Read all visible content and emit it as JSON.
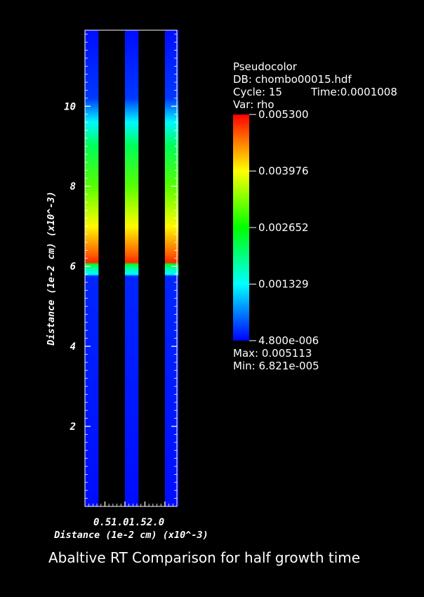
{
  "chart_data": {
    "type": "heatmap",
    "title": "Abaltive RT Comparison for half growth time",
    "xlabel": "Distance (1e-2 cm) (x10^-3)",
    "ylabel": "Distance (1e-2 cm) (x10^-3)",
    "xlim": [
      0,
      2.3
    ],
    "ylim": [
      0,
      11.9
    ],
    "x_ticks": [
      "0.5",
      "1.0",
      "1.5",
      "2.0"
    ],
    "x_ticks_rendered": "0.51.01.52.0",
    "y_ticks": [
      2,
      4,
      6,
      8,
      10
    ],
    "panels": [
      {
        "x_start": 0.0,
        "x_end": 0.34
      },
      {
        "x_start": 1.0,
        "x_end": 1.34
      },
      {
        "x_start": 2.0,
        "x_end": 2.34
      }
    ],
    "rho_profile": [
      {
        "y": 0.0,
        "value": 7e-05
      },
      {
        "y": 5.75,
        "value": 0.0002
      },
      {
        "y": 5.8,
        "value": 0.0013
      },
      {
        "y": 5.95,
        "value": 0.0018
      },
      {
        "y": 6.05,
        "value": 0.0025
      },
      {
        "y": 6.1,
        "value": 0.0051
      },
      {
        "y": 6.3,
        "value": 0.0048
      },
      {
        "y": 7.0,
        "value": 0.004
      },
      {
        "y": 8.0,
        "value": 0.0031
      },
      {
        "y": 9.0,
        "value": 0.0022
      },
      {
        "y": 9.6,
        "value": 0.0013
      },
      {
        "y": 10.2,
        "value": 0.0003
      },
      {
        "y": 11.9,
        "value": 7e-05
      }
    ],
    "legend": {
      "type_label": "Pseudocolor",
      "db": "DB: chombo00015.hdf",
      "cycle": "Cycle: 15",
      "time": "Time:0.0001008",
      "var": "Var: rho",
      "colorbar_ticks": [
        "0.005300",
        "0.003976",
        "0.002652",
        "0.001329",
        "4.800e-006"
      ],
      "colorbar_range": [
        4.8e-06,
        0.0053
      ],
      "max": "Max:  0.005113",
      "min": "Min:  6.821e-005",
      "colormap": [
        "#0000ff",
        "#00ffff",
        "#00ff00",
        "#ffff00",
        "#ff0000"
      ]
    }
  }
}
